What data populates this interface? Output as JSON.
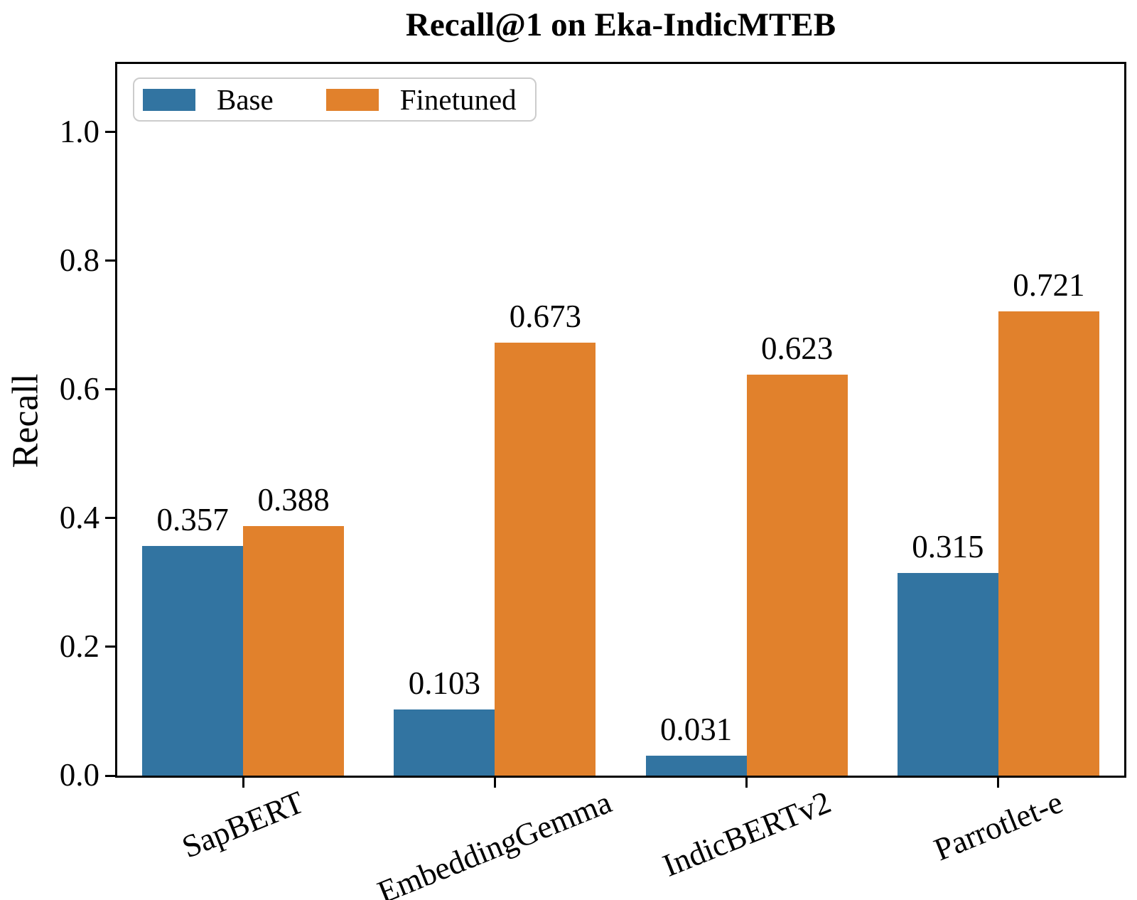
{
  "title": "Recall@1 on Eka-IndicMTEB",
  "ylabel": "Recall",
  "legend": {
    "base_label": "Base",
    "finetuned_label": "Finetuned"
  },
  "colors": {
    "base": "#3274A1",
    "finetuned": "#E1812C",
    "spine": "#000000",
    "legend_border": "#CCCCCC"
  },
  "chart_data": {
    "type": "bar",
    "title": "Recall@1 on Eka-IndicMTEB",
    "xlabel": "",
    "ylabel": "Recall",
    "categories": [
      "SapBERT",
      "EmbeddingGemma",
      "IndicBERTv2",
      "Parrotlet-e"
    ],
    "series": [
      {
        "name": "Base",
        "color": "#3274A1",
        "values": [
          0.357,
          0.103,
          0.031,
          0.315
        ],
        "bar_labels": [
          "0.357",
          "0.103",
          "0.031",
          "0.315"
        ]
      },
      {
        "name": "Finetuned",
        "color": "#E1812C",
        "values": [
          0.388,
          0.673,
          0.623,
          0.721
        ],
        "bar_labels": [
          "0.388",
          "0.673",
          "0.623",
          "0.721"
        ]
      }
    ],
    "ylim": [
      0.0,
      1.106
    ],
    "yticks": [
      0.0,
      0.2,
      0.4,
      0.6,
      0.8,
      1.0
    ],
    "ytick_labels": [
      "0.0",
      "0.2",
      "0.4",
      "0.6",
      "0.8",
      "1.0"
    ],
    "legend_entries": [
      "Base",
      "Finetuned"
    ],
    "legend_position": "upper left",
    "grid": false,
    "xtick_rotation_deg": 22
  }
}
